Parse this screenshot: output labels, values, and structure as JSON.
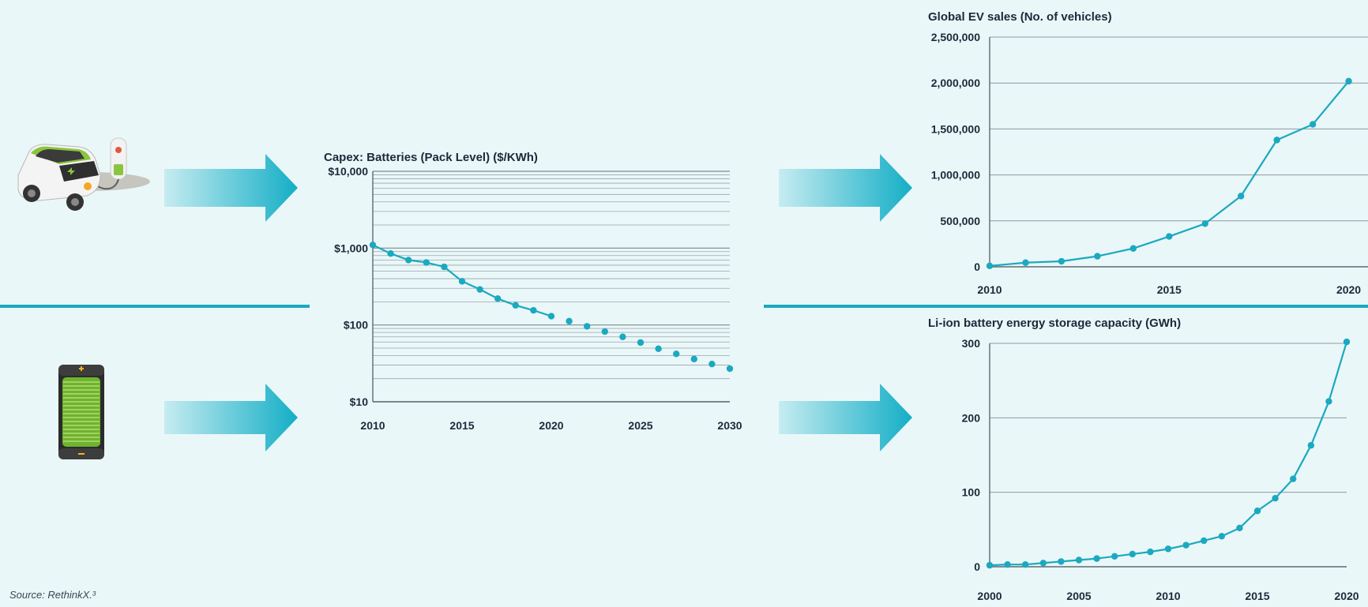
{
  "source_note": "Source: RethinkX.³",
  "colors": {
    "background": "#eaf7f8",
    "accent": "#1aa9c0",
    "arrow_light": "#b6e6ee",
    "text": "#1b2a3a"
  },
  "icons": {
    "top": "electric-car-charging-icon",
    "bottom": "battery-icon"
  },
  "chart_data": [
    {
      "id": "capex",
      "type": "line",
      "title": "Capex: Batteries (Pack Level) ($/KWh)",
      "ylog": true,
      "ylim": [
        10,
        10000
      ],
      "xlim": [
        2010,
        2030
      ],
      "yticks": [
        {
          "value": 10000,
          "label": "$10,000"
        },
        {
          "value": 1000,
          "label": "$1,000"
        },
        {
          "value": 100,
          "label": "$100"
        },
        {
          "value": 10,
          "label": "$10"
        }
      ],
      "xticks": [
        {
          "value": 2010,
          "label": "2010"
        },
        {
          "value": 2015,
          "label": "2015"
        },
        {
          "value": 2020,
          "label": "2020"
        },
        {
          "value": 2025,
          "label": "2025"
        },
        {
          "value": 2030,
          "label": "2030"
        }
      ],
      "grid": true,
      "series": [
        {
          "style": "solid",
          "x": [
            2010,
            2011,
            2012,
            2013,
            2014,
            2015,
            2016,
            2017,
            2018,
            2019,
            2020
          ],
          "y": [
            1100,
            850,
            700,
            650,
            570,
            370,
            290,
            220,
            180,
            155,
            130
          ]
        },
        {
          "style": "dotted",
          "x": [
            2021,
            2022,
            2023,
            2024,
            2025,
            2026,
            2027,
            2028,
            2029,
            2030
          ],
          "y": [
            112,
            96,
            82,
            70,
            59,
            49,
            42,
            36,
            31,
            27
          ]
        }
      ]
    },
    {
      "id": "ev_sales",
      "type": "line",
      "title": "Global EV sales (No. of vehicles)",
      "ylim": [
        0,
        2500000
      ],
      "xlim": [
        2010,
        2021
      ],
      "yticks": [
        {
          "value": 0,
          "label": "0"
        },
        {
          "value": 500000,
          "label": "500,000"
        },
        {
          "value": 1000000,
          "label": "1,000,000"
        },
        {
          "value": 1500000,
          "label": "1,500,000"
        },
        {
          "value": 2000000,
          "label": "2,000,000"
        },
        {
          "value": 2500000,
          "label": "2,500,000"
        }
      ],
      "xticks": [
        {
          "value": 2010,
          "label": "2010"
        },
        {
          "value": 2015,
          "label": "2015"
        },
        {
          "value": 2020,
          "label": "2020"
        }
      ],
      "grid": true,
      "series": [
        {
          "style": "solid",
          "x": [
            2010,
            2011,
            2012,
            2013,
            2014,
            2015,
            2016,
            2017,
            2018,
            2019,
            2020
          ],
          "y": [
            10000,
            45000,
            60000,
            115000,
            200000,
            330000,
            470000,
            770000,
            1380000,
            1550000,
            2020000
          ]
        }
      ]
    },
    {
      "id": "li_ion",
      "type": "line",
      "title": "Li-ion battery energy storage capacity (GWh)",
      "ylim": [
        0,
        300
      ],
      "xlim": [
        2000,
        2020
      ],
      "yticks": [
        {
          "value": 0,
          "label": "0"
        },
        {
          "value": 100,
          "label": "100"
        },
        {
          "value": 200,
          "label": "200"
        },
        {
          "value": 300,
          "label": "300"
        }
      ],
      "xticks": [
        {
          "value": 2000,
          "label": "2000"
        },
        {
          "value": 2005,
          "label": "2005"
        },
        {
          "value": 2010,
          "label": "2010"
        },
        {
          "value": 2015,
          "label": "2015"
        },
        {
          "value": 2020,
          "label": "2020"
        }
      ],
      "grid": true,
      "series": [
        {
          "style": "solid",
          "x": [
            2000,
            2001,
            2002,
            2003,
            2004,
            2005,
            2006,
            2007,
            2008,
            2009,
            2010,
            2011,
            2012,
            2013,
            2014,
            2015,
            2016,
            2017,
            2018,
            2019,
            2020
          ],
          "y": [
            2,
            3,
            3,
            5,
            7,
            9,
            11,
            14,
            17,
            20,
            24,
            29,
            35,
            41,
            52,
            75,
            92,
            118,
            163,
            222,
            302
          ]
        }
      ]
    }
  ]
}
